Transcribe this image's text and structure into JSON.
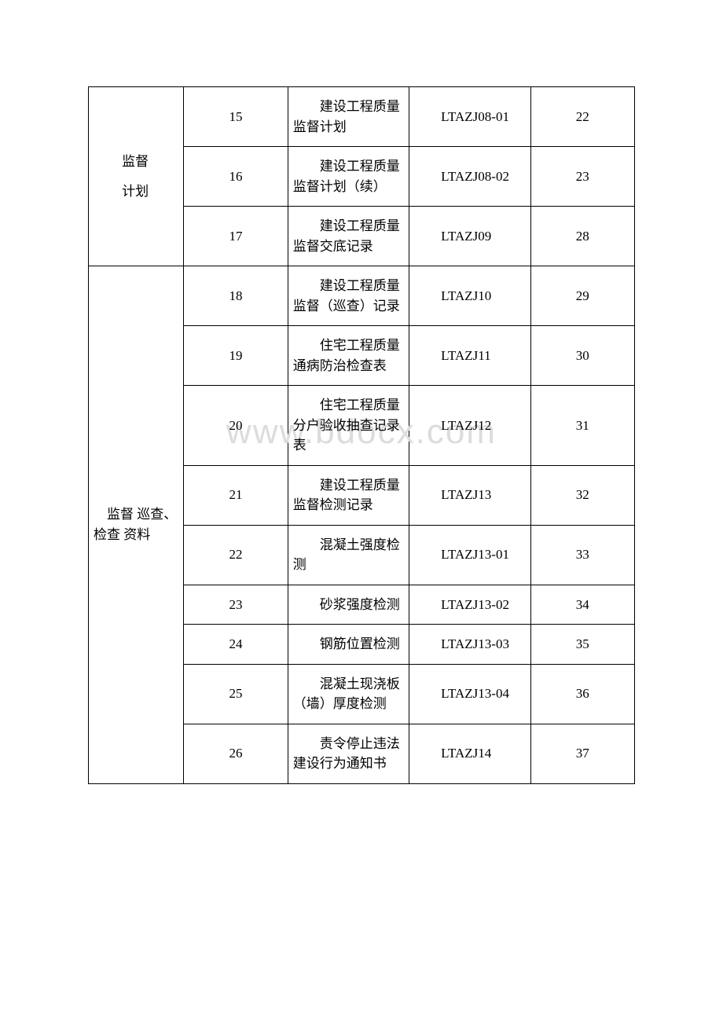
{
  "watermark": "www.bdocx.com",
  "categories": [
    {
      "label": "监督\n计划",
      "rows": [
        {
          "num": "15",
          "name": "建设工程质量监督计划",
          "code": "LTAZJ08-01",
          "page": "22"
        },
        {
          "num": "16",
          "name": "建设工程质量监督计划（续）",
          "code": "LTAZJ08-02",
          "page": "23"
        },
        {
          "num": "17",
          "name": "建设工程质量监督交底记录",
          "code": "LTAZJ09",
          "page": "28"
        }
      ]
    },
    {
      "label": "监督 巡查、检查 资料",
      "rows": [
        {
          "num": "18",
          "name": "建设工程质量监督（巡查）记录",
          "code": "LTAZJ10",
          "page": "29"
        },
        {
          "num": "19",
          "name": "住宅工程质量通病防治检查表",
          "code": "LTAZJ11",
          "page": "30"
        },
        {
          "num": "20",
          "name": "住宅工程质量分户验收抽查记录表",
          "code": "LTAZJ12",
          "page": "31"
        },
        {
          "num": "21",
          "name": "建设工程质量监督检测记录",
          "code": "LTAZJ13",
          "page": "32"
        },
        {
          "num": "22",
          "name": "混凝土强度检测",
          "code": "LTAZJ13-01",
          "page": "33"
        },
        {
          "num": "23",
          "name": "砂浆强度检测",
          "code": "LTAZJ13-02",
          "page": "34"
        },
        {
          "num": "24",
          "name": "钢筋位置检测",
          "code": "LTAZJ13-03",
          "page": "35"
        },
        {
          "num": "25",
          "name": "混凝土现浇板（墙）厚度检测",
          "code": "LTAZJ13-04",
          "page": "36"
        },
        {
          "num": "26",
          "name": "责令停止违法建设行为通知书",
          "code": "LTAZJ14",
          "page": "37"
        }
      ]
    }
  ]
}
